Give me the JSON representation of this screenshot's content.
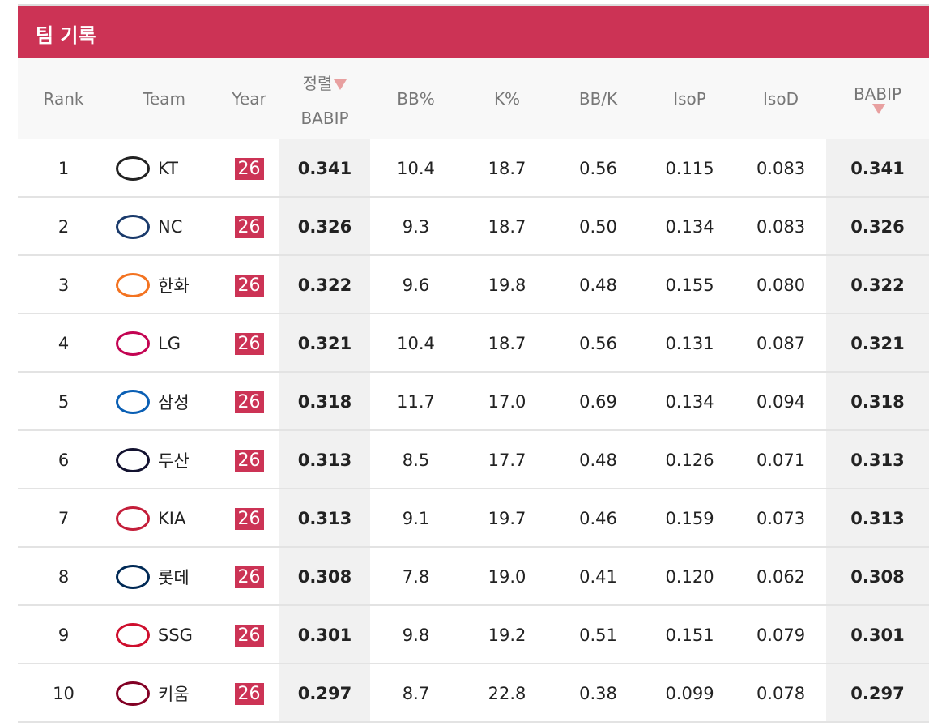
{
  "header": {
    "title": "팀 기록"
  },
  "table": {
    "columns": [
      "Rank",
      "Team",
      "Year",
      {
        "label": "정렬",
        "sub": "BABIP"
      },
      "BB%",
      "K%",
      "BB/K",
      "IsoP",
      "IsoD",
      "BABIP"
    ],
    "rows": [
      [
        "1",
        "KT",
        "26",
        "0.341",
        "10.4",
        "18.7",
        "0.56",
        "0.115",
        "0.083",
        "0.341"
      ],
      [
        "2",
        "NC",
        "26",
        "0.326",
        "9.3",
        "18.7",
        "0.50",
        "0.134",
        "0.083",
        "0.326"
      ],
      [
        "3",
        "한화",
        "26",
        "0.322",
        "9.6",
        "19.8",
        "0.48",
        "0.155",
        "0.080",
        "0.322"
      ],
      [
        "4",
        "LG",
        "26",
        "0.321",
        "10.4",
        "18.7",
        "0.56",
        "0.131",
        "0.087",
        "0.321"
      ],
      [
        "5",
        "삼성",
        "26",
        "0.318",
        "11.7",
        "17.0",
        "0.69",
        "0.134",
        "0.094",
        "0.318"
      ],
      [
        "6",
        "두산",
        "26",
        "0.313",
        "8.5",
        "17.7",
        "0.48",
        "0.126",
        "0.071",
        "0.313"
      ],
      [
        "7",
        "KIA",
        "26",
        "0.313",
        "9.1",
        "19.7",
        "0.46",
        "0.159",
        "0.073",
        "0.313"
      ],
      [
        "8",
        "롯데",
        "26",
        "0.308",
        "7.8",
        "19.0",
        "0.41",
        "0.120",
        "0.062",
        "0.308"
      ],
      [
        "9",
        "SSG",
        "26",
        "0.301",
        "9.8",
        "19.2",
        "0.51",
        "0.151",
        "0.079",
        "0.301"
      ],
      [
        "10",
        "키움",
        "26",
        "0.297",
        "8.7",
        "22.8",
        "0.38",
        "0.099",
        "0.078",
        "0.297"
      ]
    ]
  }
}
